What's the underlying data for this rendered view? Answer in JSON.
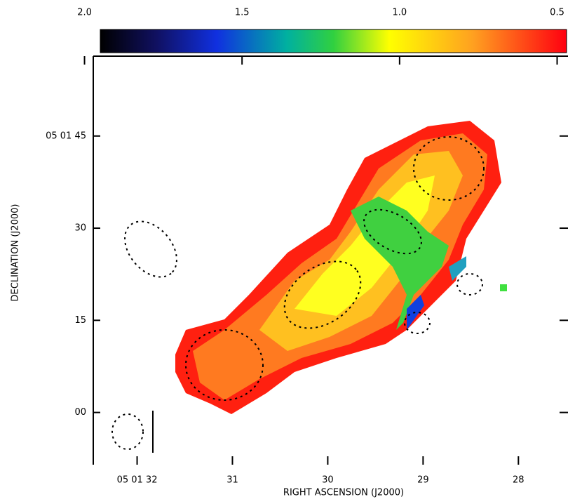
{
  "chart_data": {
    "type": "image",
    "xlabel": "RIGHT ASCENSION (J2000)",
    "ylabel": "DECLINATION (J2000)",
    "xlim": [
      32.46,
      27.48
    ],
    "xticks": [
      {
        "value": 32,
        "label": "05 01 32"
      },
      31,
      30,
      29,
      28
    ],
    "ylim": [
      -8.5,
      58
    ],
    "yticks": [
      {
        "value": 45,
        "label": "05 01 45"
      },
      30,
      15,
      {
        "value": 0,
        "label": "00"
      }
    ],
    "colorbar": {
      "lim": [
        1.95,
        0.47
      ],
      "ticks": [
        {
          "value": 2.0,
          "label": "2.0"
        },
        {
          "value": 1.5,
          "label": "1.5"
        },
        {
          "value": 1.0,
          "label": "1.0"
        },
        {
          "value": 0.5,
          "label": "0.5"
        }
      ]
    }
  }
}
